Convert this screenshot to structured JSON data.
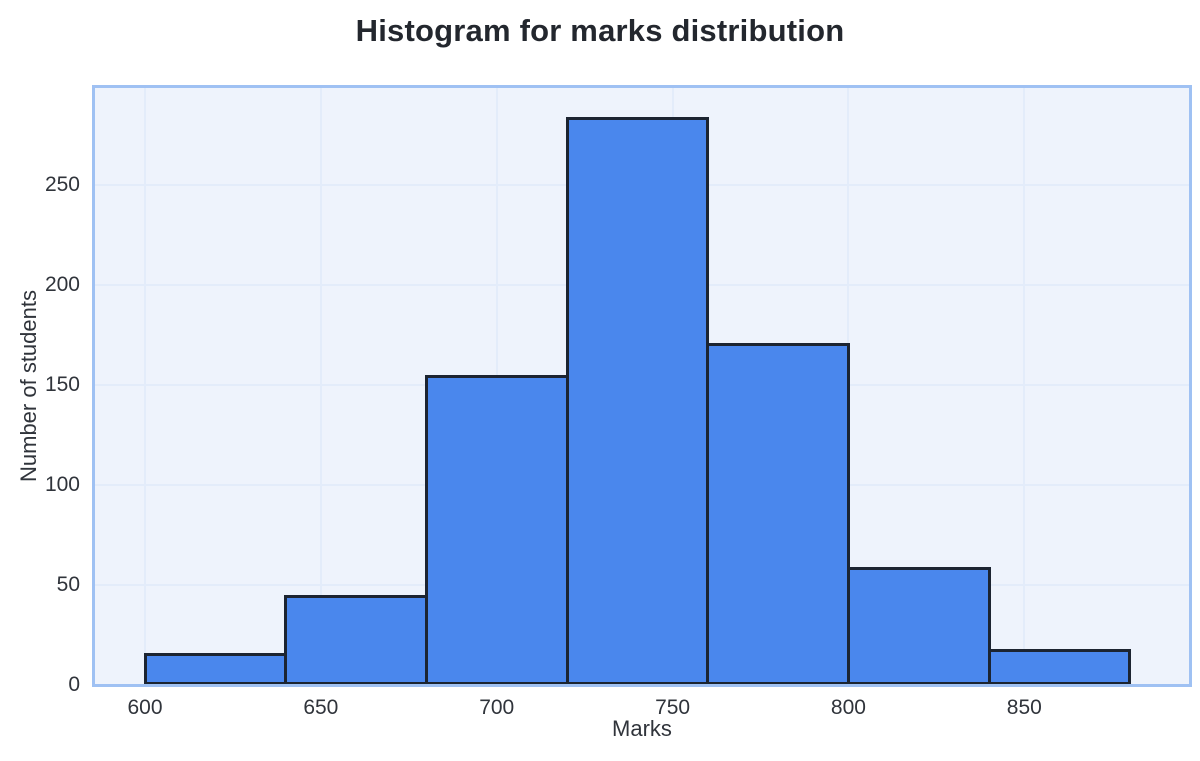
{
  "chart_data": {
    "type": "bar",
    "subtype": "histogram",
    "title": "Histogram for marks distribution",
    "xlabel": "Marks",
    "ylabel": "Number of students",
    "bin_edges": [
      600,
      640,
      680,
      720,
      760,
      800,
      840,
      880
    ],
    "counts": [
      16,
      45,
      155,
      284,
      171,
      59,
      18
    ],
    "x_ticks": [
      600,
      650,
      700,
      750,
      800,
      850
    ],
    "y_ticks": [
      0,
      50,
      100,
      150,
      200,
      250
    ],
    "xlim": [
      585.5,
      897.1
    ],
    "ylim": [
      0,
      299
    ],
    "grid": true,
    "legend": "none",
    "colors": {
      "page_bg": "#ffffff",
      "bar_fill": "#4a87ed",
      "bar_edge": "#1c2431",
      "plot_bg": "#eef3fc",
      "plot_border": "#9fc1f3",
      "grid_line": "#e3ecfa",
      "text": "#30343b",
      "title_text": "#23272e"
    }
  }
}
